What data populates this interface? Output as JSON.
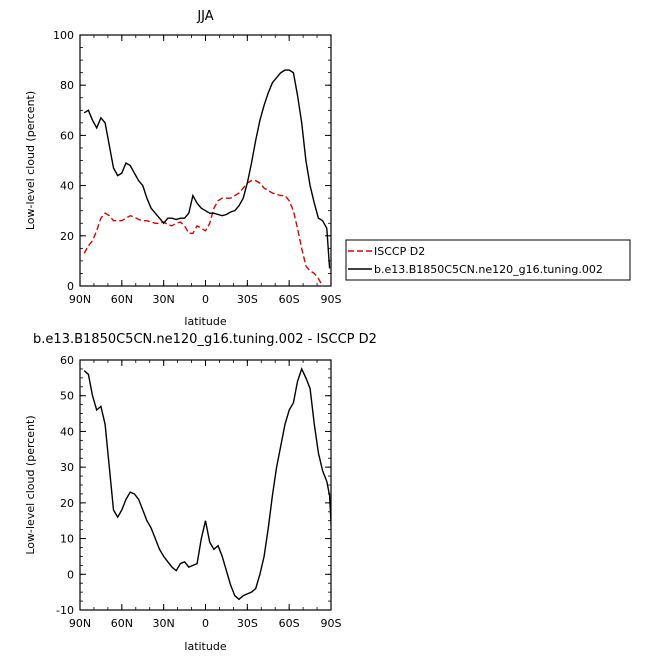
{
  "chart_data": [
    {
      "type": "line",
      "title": "JJA",
      "xlabel": "latitude",
      "ylabel": "Low-level cloud (percent)",
      "xlim": [
        -90,
        90
      ],
      "ylim": [
        0,
        100
      ],
      "x_ticks": [
        {
          "value": -90,
          "label": "90N"
        },
        {
          "value": -60,
          "label": "60N"
        },
        {
          "value": -30,
          "label": "30N"
        },
        {
          "value": 0,
          "label": "0"
        },
        {
          "value": 30,
          "label": "30S"
        },
        {
          "value": 60,
          "label": "60S"
        },
        {
          "value": 90,
          "label": "90S"
        }
      ],
      "y_ticks": [
        0,
        20,
        40,
        60,
        80,
        100
      ],
      "legend": "right",
      "series": [
        {
          "name": "ISCCP D2",
          "color": "#e00000",
          "dash": "dashed",
          "points": [
            [
              -87,
              13
            ],
            [
              -84,
              16
            ],
            [
              -81,
              18
            ],
            [
              -78,
              22
            ],
            [
              -75,
              27
            ],
            [
              -72,
              29
            ],
            [
              -69,
              28
            ],
            [
              -66,
              26
            ],
            [
              -63,
              26
            ],
            [
              -60,
              26
            ],
            [
              -57,
              27
            ],
            [
              -54,
              28
            ],
            [
              -51,
              27.5
            ],
            [
              -48,
              26.5
            ],
            [
              -45,
              26
            ],
            [
              -42,
              26
            ],
            [
              -39,
              25.5
            ],
            [
              -36,
              25
            ],
            [
              -33,
              25
            ],
            [
              -30,
              25.5
            ],
            [
              -27,
              24.5
            ],
            [
              -24,
              24
            ],
            [
              -21,
              25
            ],
            [
              -18,
              25.5
            ],
            [
              -15,
              24
            ],
            [
              -12,
              21
            ],
            [
              -9,
              21
            ],
            [
              -6,
              24
            ],
            [
              -3,
              23
            ],
            [
              0,
              22
            ],
            [
              3,
              25
            ],
            [
              6,
              31
            ],
            [
              9,
              34
            ],
            [
              12,
              35
            ],
            [
              15,
              35
            ],
            [
              18,
              35
            ],
            [
              21,
              36
            ],
            [
              24,
              37
            ],
            [
              27,
              39
            ],
            [
              30,
              41
            ],
            [
              33,
              42
            ],
            [
              36,
              42
            ],
            [
              39,
              41
            ],
            [
              42,
              39
            ],
            [
              45,
              38
            ],
            [
              48,
              37
            ],
            [
              51,
              36.5
            ],
            [
              54,
              36
            ],
            [
              57,
              36
            ],
            [
              60,
              34
            ],
            [
              63,
              30
            ],
            [
              66,
              23
            ],
            [
              69,
              15
            ],
            [
              72,
              8
            ],
            [
              75,
              6
            ],
            [
              78,
              5
            ],
            [
              81,
              3
            ],
            [
              84,
              0
            ],
            [
              87,
              -1
            ]
          ]
        },
        {
          "name": "b.e13.B1850C5CN.ne120_g16.tuning.002",
          "color": "#000000",
          "dash": "solid",
          "points": [
            [
              -87,
              69
            ],
            [
              -84,
              70
            ],
            [
              -81,
              66
            ],
            [
              -78,
              63
            ],
            [
              -75,
              67
            ],
            [
              -72,
              65
            ],
            [
              -69,
              56
            ],
            [
              -66,
              47
            ],
            [
              -63,
              44
            ],
            [
              -60,
              45
            ],
            [
              -57,
              49
            ],
            [
              -54,
              48
            ],
            [
              -51,
              45
            ],
            [
              -48,
              42
            ],
            [
              -45,
              40
            ],
            [
              -42,
              35
            ],
            [
              -39,
              31
            ],
            [
              -36,
              29
            ],
            [
              -33,
              27
            ],
            [
              -30,
              25
            ],
            [
              -27,
              27
            ],
            [
              -24,
              27
            ],
            [
              -21,
              26.5
            ],
            [
              -18,
              27
            ],
            [
              -15,
              27
            ],
            [
              -12,
              29
            ],
            [
              -9,
              36
            ],
            [
              -6,
              33
            ],
            [
              -3,
              31
            ],
            [
              0,
              30
            ],
            [
              3,
              29
            ],
            [
              6,
              29
            ],
            [
              9,
              28.5
            ],
            [
              12,
              28
            ],
            [
              15,
              28.5
            ],
            [
              18,
              29.5
            ],
            [
              21,
              30
            ],
            [
              24,
              32
            ],
            [
              27,
              35
            ],
            [
              30,
              41
            ],
            [
              33,
              49
            ],
            [
              36,
              58
            ],
            [
              39,
              66
            ],
            [
              42,
              72
            ],
            [
              45,
              77
            ],
            [
              48,
              81
            ],
            [
              51,
              83
            ],
            [
              54,
              85
            ],
            [
              57,
              86
            ],
            [
              60,
              86
            ],
            [
              63,
              85
            ],
            [
              66,
              76
            ],
            [
              69,
              65
            ],
            [
              72,
              50
            ],
            [
              75,
              40
            ],
            [
              78,
              33
            ],
            [
              81,
              27
            ],
            [
              84,
              26
            ],
            [
              87,
              23
            ],
            [
              89,
              7
            ]
          ]
        }
      ]
    },
    {
      "type": "line",
      "title": "b.e13.B1850C5CN.ne120_g16.tuning.002 - ISCCP D2",
      "xlabel": "latitude",
      "ylabel": "Low-level cloud (percent)",
      "xlim": [
        -90,
        90
      ],
      "ylim": [
        -10,
        60
      ],
      "x_ticks": [
        {
          "value": -90,
          "label": "90N"
        },
        {
          "value": -60,
          "label": "60N"
        },
        {
          "value": -30,
          "label": "30N"
        },
        {
          "value": 0,
          "label": "0"
        },
        {
          "value": 30,
          "label": "30S"
        },
        {
          "value": 60,
          "label": "60S"
        },
        {
          "value": 90,
          "label": "90S"
        }
      ],
      "y_ticks": [
        -10,
        0,
        10,
        20,
        30,
        40,
        50,
        60
      ],
      "series": [
        {
          "color": "#000000",
          "dash": "solid",
          "points": [
            [
              -87,
              57
            ],
            [
              -84,
              56
            ],
            [
              -81,
              50
            ],
            [
              -78,
              46
            ],
            [
              -75,
              47
            ],
            [
              -72,
              42
            ],
            [
              -69,
              30
            ],
            [
              -66,
              18
            ],
            [
              -63,
              16
            ],
            [
              -60,
              18
            ],
            [
              -57,
              21
            ],
            [
              -54,
              23
            ],
            [
              -51,
              22.5
            ],
            [
              -48,
              21
            ],
            [
              -45,
              18
            ],
            [
              -42,
              15
            ],
            [
              -39,
              13
            ],
            [
              -36,
              10
            ],
            [
              -33,
              7
            ],
            [
              -30,
              5
            ],
            [
              -27,
              3.5
            ],
            [
              -24,
              2
            ],
            [
              -21,
              1
            ],
            [
              -18,
              3
            ],
            [
              -15,
              3.5
            ],
            [
              -12,
              2
            ],
            [
              -9,
              2.5
            ],
            [
              -6,
              3
            ],
            [
              -3,
              10
            ],
            [
              0,
              15
            ],
            [
              3,
              9
            ],
            [
              6,
              7
            ],
            [
              9,
              8
            ],
            [
              12,
              5
            ],
            [
              15,
              1
            ],
            [
              18,
              -3
            ],
            [
              21,
              -6
            ],
            [
              24,
              -7
            ],
            [
              27,
              -6
            ],
            [
              30,
              -5.5
            ],
            [
              33,
              -5
            ],
            [
              36,
              -4
            ],
            [
              39,
              0
            ],
            [
              42,
              5
            ],
            [
              45,
              13
            ],
            [
              48,
              22
            ],
            [
              51,
              30
            ],
            [
              54,
              36
            ],
            [
              57,
              42
            ],
            [
              60,
              46
            ],
            [
              63,
              48
            ],
            [
              66,
              54
            ],
            [
              69,
              57.5
            ],
            [
              72,
              55
            ],
            [
              75,
              52
            ],
            [
              78,
              42
            ],
            [
              81,
              34
            ],
            [
              84,
              29
            ],
            [
              87,
              26
            ],
            [
              89,
              22
            ],
            [
              91,
              7
            ]
          ]
        }
      ]
    }
  ]
}
